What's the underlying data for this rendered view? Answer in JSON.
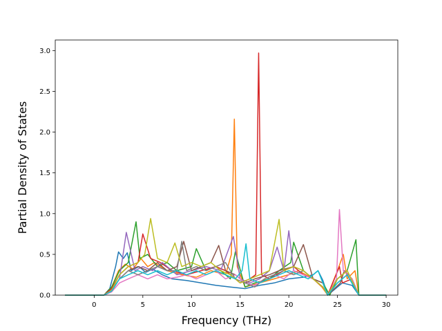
{
  "chart_data": {
    "type": "line",
    "xlabel": "Frequency (THz)",
    "ylabel": "Partial Density of States",
    "xlim": [
      -4.0,
      31.2
    ],
    "ylim": [
      0.0,
      3.13
    ],
    "xticks": [
      0,
      5,
      10,
      15,
      20,
      25,
      30
    ],
    "xtick_labels": [
      "0",
      "5",
      "10",
      "15",
      "20",
      "25",
      "30"
    ],
    "yticks": [
      0.0,
      0.5,
      1.0,
      1.5,
      2.0,
      2.5,
      3.0
    ],
    "ytick_labels": [
      "0.0",
      "0.5",
      "1.0",
      "1.5",
      "2.0",
      "2.5",
      "3.0"
    ],
    "grid": false,
    "legend": "none",
    "series_colors": [
      "#1f77b4",
      "#ff7f0e",
      "#2ca02c",
      "#d62728",
      "#9467bd",
      "#8c564b",
      "#e377c2",
      "#7f7f7f",
      "#bcbd22",
      "#17becf"
    ],
    "series": [
      {
        "color": "#1f77b4",
        "x": [
          -3,
          1,
          1.6,
          2.2,
          2.5,
          3.0,
          3.4,
          3.8,
          4.6,
          5.3,
          6.0,
          7.0,
          8.0,
          9.5,
          11.0,
          12.5,
          14.0,
          15.5,
          17.0,
          18.5,
          20.0,
          21.5,
          22.5,
          23.0,
          23.5,
          24.0,
          25.0,
          25.5,
          26.5,
          27.2,
          30
        ],
        "y": [
          0,
          0,
          0.08,
          0.35,
          0.53,
          0.45,
          0.52,
          0.3,
          0.35,
          0.28,
          0.32,
          0.25,
          0.2,
          0.18,
          0.15,
          0.12,
          0.1,
          0.08,
          0.12,
          0.15,
          0.2,
          0.22,
          0.25,
          0.3,
          0.18,
          0,
          0.1,
          0.15,
          0.12,
          0,
          0
        ]
      },
      {
        "color": "#ff7f0e",
        "x": [
          -3,
          1,
          1.8,
          2.5,
          3.2,
          4.0,
          4.8,
          5.5,
          6.2,
          7.5,
          9.0,
          10.5,
          12.0,
          13.5,
          14.1,
          14.4,
          14.7,
          15.5,
          17.0,
          18.5,
          20.0,
          21.0,
          22.5,
          23.4,
          24.0,
          25.0,
          25.6,
          26.0,
          26.8,
          27.2,
          30
        ],
        "y": [
          0,
          0,
          0.1,
          0.3,
          0.38,
          0.32,
          0.45,
          0.35,
          0.4,
          0.3,
          0.25,
          0.22,
          0.3,
          0.25,
          0.5,
          2.16,
          0.35,
          0.1,
          0.15,
          0.2,
          0.25,
          0.3,
          0.2,
          0.1,
          0,
          0.3,
          0.5,
          0.2,
          0.3,
          0,
          0
        ]
      },
      {
        "color": "#2ca02c",
        "x": [
          -3,
          1,
          1.8,
          2.6,
          3.5,
          4.3,
          4.7,
          5.5,
          6.5,
          7.5,
          8.5,
          10.0,
          10.5,
          11.5,
          12.5,
          14.0,
          14.5,
          15.5,
          16.5,
          18.0,
          19.0,
          20.2,
          20.5,
          21.5,
          22.5,
          23.5,
          24.2,
          25.0,
          26.0,
          26.9,
          27.2,
          30
        ],
        "y": [
          0,
          0,
          0.1,
          0.3,
          0.4,
          0.9,
          0.45,
          0.5,
          0.35,
          0.4,
          0.3,
          0.35,
          0.57,
          0.3,
          0.35,
          0.2,
          0.53,
          0.1,
          0.15,
          0.2,
          0.3,
          0.4,
          0.65,
          0.3,
          0.2,
          0.15,
          0,
          0.2,
          0.3,
          0.68,
          0,
          0
        ]
      },
      {
        "color": "#d62728",
        "x": [
          -3,
          1,
          1.8,
          2.6,
          3.5,
          4.5,
          5.0,
          5.8,
          6.8,
          8.0,
          9.5,
          11.0,
          12.5,
          13.5,
          15.0,
          16.0,
          16.6,
          16.9,
          17.2,
          18.0,
          19.5,
          20.5,
          21.5,
          22.5,
          23.5,
          24.0,
          25.2,
          25.5,
          26.5,
          27.2,
          30
        ],
        "y": [
          0,
          0,
          0.08,
          0.25,
          0.35,
          0.4,
          0.75,
          0.45,
          0.4,
          0.3,
          0.25,
          0.3,
          0.35,
          0.3,
          0.15,
          0.2,
          0.25,
          2.97,
          0.25,
          0.2,
          0.3,
          0.35,
          0.25,
          0.2,
          0.1,
          0,
          0.35,
          0.15,
          0.2,
          0,
          0
        ]
      },
      {
        "color": "#9467bd",
        "x": [
          -3,
          1,
          1.8,
          2.6,
          3.3,
          4.2,
          5.0,
          6.0,
          7.0,
          8.5,
          10.0,
          11.5,
          13.0,
          14.3,
          15.0,
          16.0,
          17.0,
          18.0,
          18.8,
          19.5,
          20.0,
          20.5,
          21.5,
          22.5,
          23.5,
          24.0,
          25.0,
          26.0,
          27.2,
          30
        ],
        "y": [
          0,
          0,
          0.06,
          0.2,
          0.77,
          0.3,
          0.35,
          0.3,
          0.4,
          0.25,
          0.3,
          0.35,
          0.3,
          0.72,
          0.2,
          0.15,
          0.2,
          0.3,
          0.59,
          0.3,
          0.79,
          0.3,
          0.25,
          0.2,
          0.1,
          0,
          0.2,
          0.3,
          0,
          0
        ]
      },
      {
        "color": "#8c564b",
        "x": [
          -3,
          1,
          1.8,
          2.6,
          3.5,
          4.5,
          5.5,
          6.5,
          7.5,
          8.5,
          9.2,
          10.0,
          11.0,
          12.0,
          12.8,
          13.5,
          14.5,
          15.5,
          16.5,
          18.0,
          19.0,
          20.5,
          21.5,
          22.5,
          23.5,
          24.0,
          25.3,
          25.7,
          26.5,
          27.2,
          30
        ],
        "y": [
          0,
          0,
          0.05,
          0.2,
          0.3,
          0.35,
          0.3,
          0.4,
          0.3,
          0.35,
          0.66,
          0.3,
          0.35,
          0.4,
          0.61,
          0.3,
          0.25,
          0.15,
          0.2,
          0.25,
          0.3,
          0.35,
          0.62,
          0.2,
          0.15,
          0,
          0.15,
          0.3,
          0.2,
          0,
          0
        ]
      },
      {
        "color": "#e377c2",
        "x": [
          -3,
          1,
          1.8,
          2.6,
          3.5,
          4.5,
          5.5,
          6.5,
          7.5,
          8.5,
          9.5,
          10.5,
          11.5,
          12.5,
          13.5,
          14.5,
          15.5,
          16.5,
          17.5,
          18.5,
          19.5,
          20.5,
          21.5,
          22.5,
          23.5,
          24.0,
          24.9,
          25.2,
          25.6,
          26.5,
          27.2,
          30
        ],
        "y": [
          0,
          0,
          0.04,
          0.15,
          0.2,
          0.25,
          0.2,
          0.25,
          0.2,
          0.22,
          0.25,
          0.2,
          0.25,
          0.3,
          0.2,
          0.25,
          0.15,
          0.12,
          0.2,
          0.25,
          0.2,
          0.3,
          0.25,
          0.2,
          0.1,
          0,
          0.2,
          1.05,
          0.3,
          0.2,
          0,
          0
        ]
      },
      {
        "color": "#7f7f7f",
        "x": [
          -3,
          1,
          1.8,
          2.6,
          3.5,
          4.5,
          5.5,
          6.5,
          7.5,
          8.5,
          9.0,
          9.5,
          10.5,
          11.5,
          12.5,
          13.5,
          14.5,
          15.5,
          16.5,
          17.5,
          18.5,
          19.5,
          20.5,
          21.5,
          22.5,
          23.5,
          24.0,
          25.0,
          26.0,
          27.2,
          30
        ],
        "y": [
          0,
          0,
          0.05,
          0.2,
          0.3,
          0.25,
          0.3,
          0.35,
          0.3,
          0.3,
          0.66,
          0.3,
          0.35,
          0.3,
          0.35,
          0.4,
          0.2,
          0.15,
          0.1,
          0.2,
          0.25,
          0.3,
          0.25,
          0.3,
          0.2,
          0.1,
          0,
          0.15,
          0.25,
          0,
          0
        ]
      },
      {
        "color": "#bcbd22",
        "x": [
          -3,
          1,
          1.8,
          2.6,
          3.5,
          4.5,
          5.2,
          5.8,
          6.5,
          7.5,
          8.3,
          9.0,
          10.0,
          11.0,
          12.0,
          13.0,
          14.0,
          15.0,
          16.0,
          17.0,
          18.0,
          19.0,
          19.5,
          20.5,
          21.5,
          22.5,
          23.5,
          24.0,
          25.0,
          26.0,
          27.2,
          30
        ],
        "y": [
          0,
          0,
          0.06,
          0.25,
          0.35,
          0.4,
          0.5,
          0.94,
          0.45,
          0.4,
          0.64,
          0.35,
          0.4,
          0.35,
          0.4,
          0.3,
          0.25,
          0.15,
          0.2,
          0.25,
          0.3,
          0.93,
          0.3,
          0.35,
          0.3,
          0.2,
          0.1,
          0,
          0.2,
          0.3,
          0,
          0
        ]
      },
      {
        "color": "#17becf",
        "x": [
          -3,
          1,
          1.8,
          2.6,
          3.5,
          4.5,
          5.5,
          6.5,
          7.5,
          8.5,
          9.5,
          10.5,
          11.5,
          12.5,
          13.5,
          14.5,
          15.2,
          15.6,
          16.0,
          17.0,
          18.0,
          19.0,
          20.0,
          21.0,
          22.0,
          23.0,
          23.5,
          24.0,
          25.0,
          26.0,
          27.2,
          30
        ],
        "y": [
          0,
          0,
          0.05,
          0.2,
          0.25,
          0.3,
          0.25,
          0.3,
          0.25,
          0.3,
          0.25,
          0.3,
          0.25,
          0.3,
          0.25,
          0.2,
          0.3,
          0.63,
          0.2,
          0.15,
          0.2,
          0.25,
          0.3,
          0.25,
          0.2,
          0.3,
          0.15,
          0,
          0.15,
          0.25,
          0,
          0
        ]
      }
    ]
  }
}
